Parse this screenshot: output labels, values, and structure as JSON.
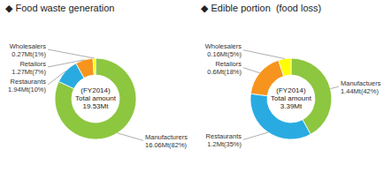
{
  "chart_data": [
    {
      "type": "pie",
      "title": "◆ Food waste generation",
      "categories": [
        "Manufacturers",
        "Restaurants",
        "Retailors",
        "Wholesalers"
      ],
      "values": [
        82,
        10,
        7,
        1
      ],
      "value_labels": [
        "16.06Mt(82%)",
        "1.94Mt(10%)",
        "1.27Mt(7%)",
        "0.27Mt(1%)"
      ],
      "colors": [
        "#8dc63f",
        "#29abe2",
        "#f7941d",
        "#ffff00"
      ],
      "annotations": [
        "(FY2014)",
        "Total amount",
        "19.53Mt"
      ],
      "data_labels": true
    },
    {
      "type": "pie",
      "title": "◆ Edible portion  (food loss)",
      "categories": [
        "Manufactuers",
        "Restaurants",
        "Retailors",
        "Wholesalers"
      ],
      "values": [
        42,
        35,
        18,
        5
      ],
      "value_labels": [
        "1.44Mt(42%)",
        "1.2Mt(35%)",
        "0.6Mt(18%)",
        "0.16Mt(5%)"
      ],
      "colors": [
        "#8dc63f",
        "#29abe2",
        "#f7941d",
        "#ffff00"
      ],
      "annotations": [
        "(FY2014)",
        "Total amount",
        "3.39Mt"
      ],
      "data_labels": true
    }
  ]
}
